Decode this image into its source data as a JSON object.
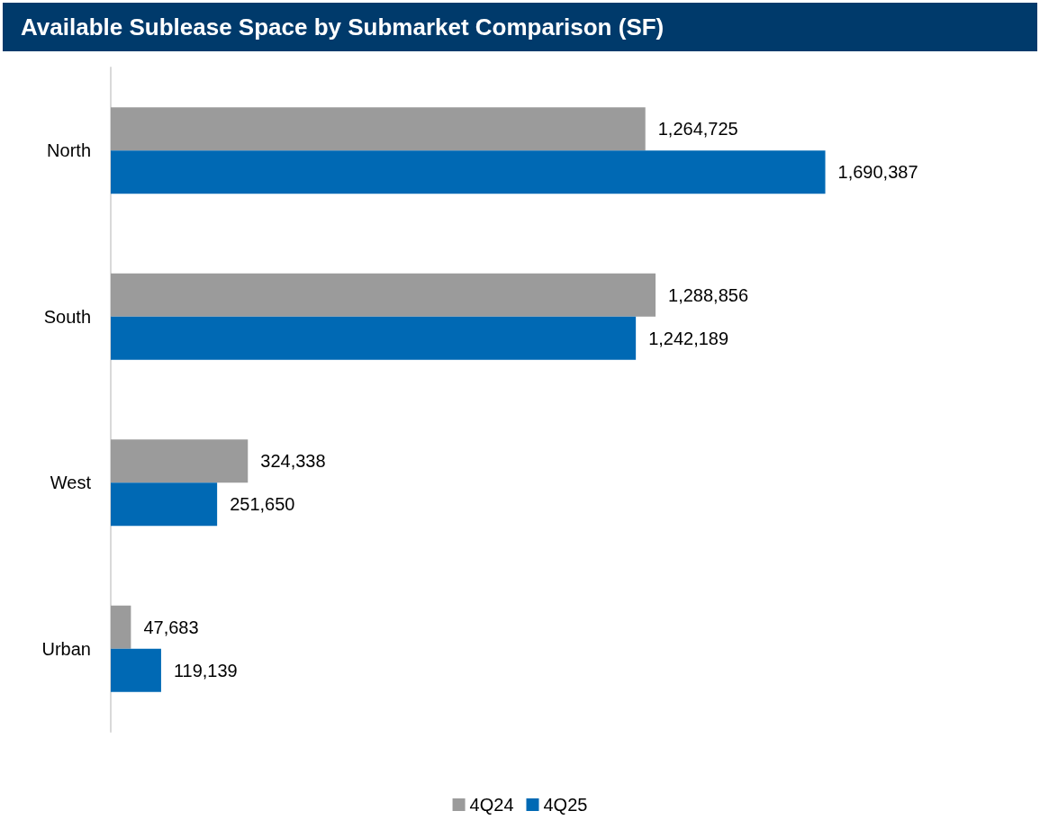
{
  "chart_data": {
    "type": "bar",
    "orientation": "horizontal",
    "title": "Available Sublease Space by Submarket Comparison (SF)",
    "categories": [
      "North",
      "South",
      "West",
      "Urban"
    ],
    "series": [
      {
        "name": "4Q24",
        "color": "#9b9b9b",
        "values": [
          1264725,
          1288856,
          324338,
          47683
        ],
        "value_labels": [
          "1,264,725",
          "1,288,856",
          "324,338",
          "47,683"
        ]
      },
      {
        "name": "4Q25",
        "color": "#0069b4",
        "values": [
          1690387,
          1242189,
          251650,
          119139
        ],
        "value_labels": [
          "1,690,387",
          "1,242,189",
          "251,650",
          "119,139"
        ]
      }
    ],
    "legend": "bottom"
  }
}
